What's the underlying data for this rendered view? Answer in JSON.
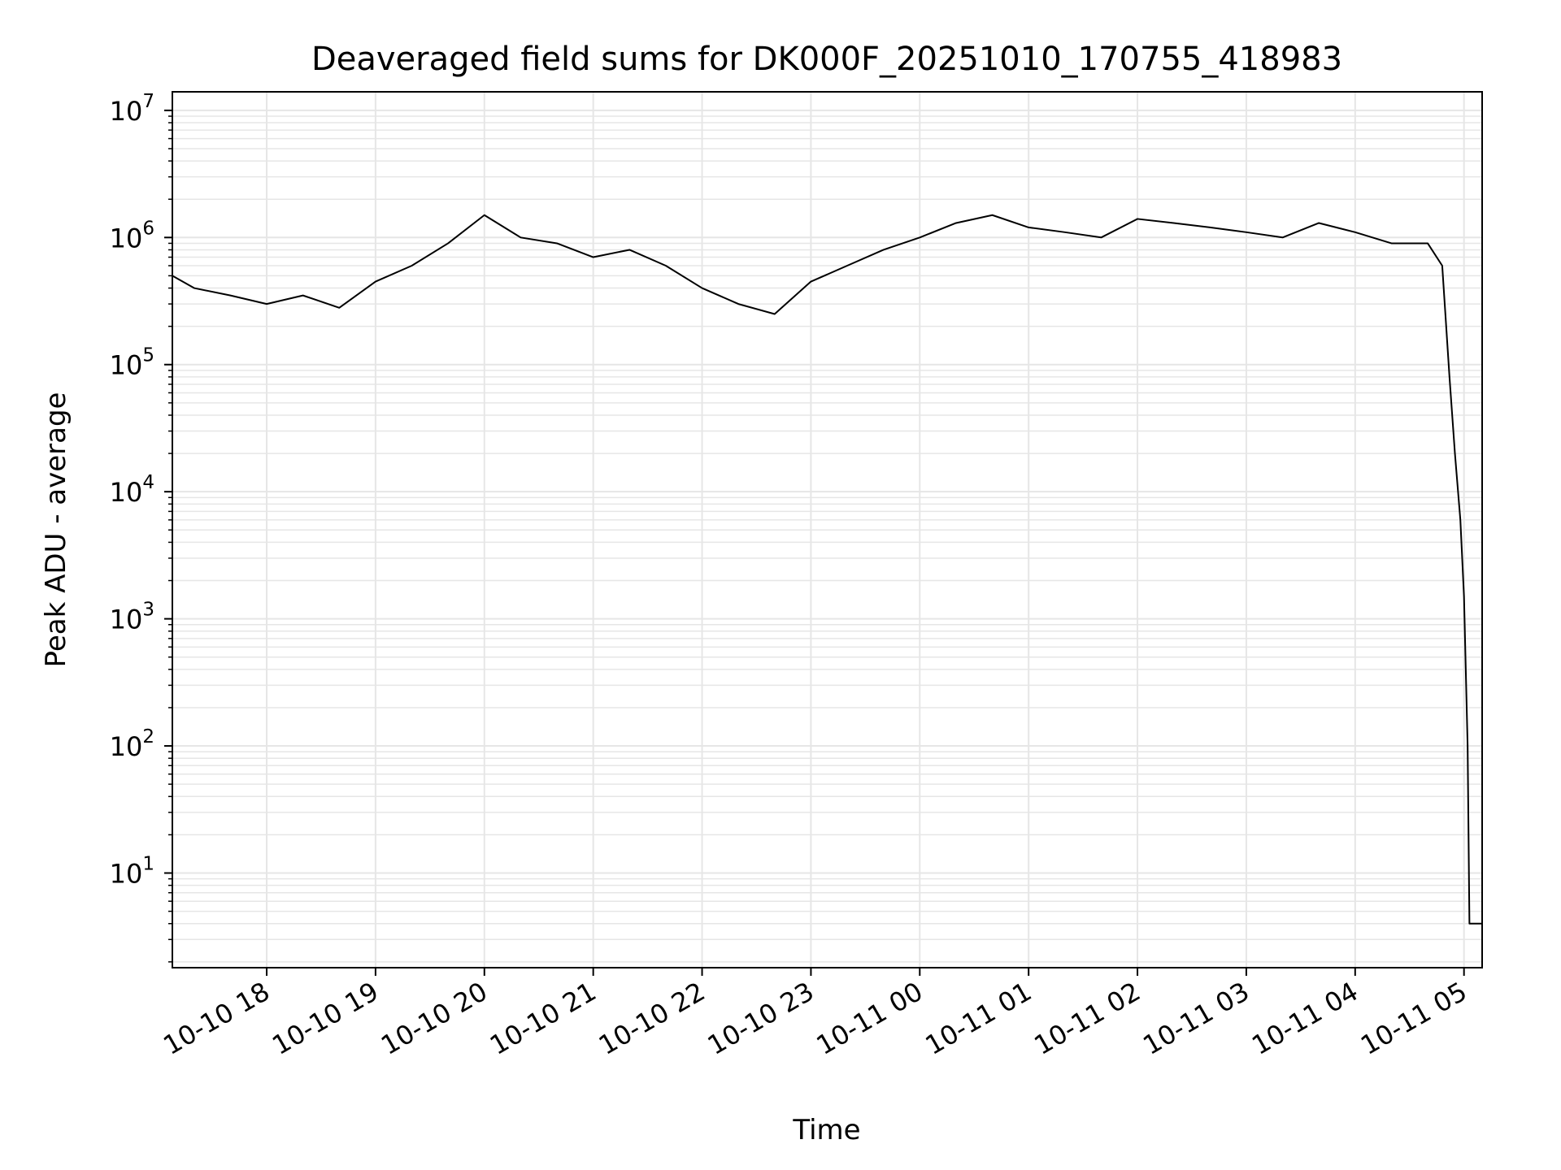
{
  "chart_data": {
    "type": "line",
    "title": "Deaveraged field sums for DK000F_20251010_170755_418983",
    "xlabel": "Time",
    "ylabel": "Peak ADU - average",
    "yscale": "log",
    "ylim": [
      1.8,
      14000000
    ],
    "xlim": [
      "2025-10-10 17:08",
      "2025-10-11 05:10"
    ],
    "grid": true,
    "line_color": "#000000",
    "grid_color": "#e6e6e6",
    "x_ticks": [
      "2025-10-10 18:00",
      "2025-10-10 19:00",
      "2025-10-10 20:00",
      "2025-10-10 21:00",
      "2025-10-10 22:00",
      "2025-10-10 23:00",
      "2025-10-11 00:00",
      "2025-10-11 01:00",
      "2025-10-11 02:00",
      "2025-10-11 03:00",
      "2025-10-11 04:00",
      "2025-10-11 05:00"
    ],
    "x_tick_labels": [
      "10-10 18",
      "10-10 19",
      "10-10 20",
      "10-10 21",
      "10-10 22",
      "10-10 23",
      "10-11 00",
      "10-11 01",
      "10-11 02",
      "10-11 03",
      "10-11 04",
      "10-11 05"
    ],
    "y_ticks": [
      10,
      100,
      1000,
      10000,
      100000,
      1000000,
      10000000
    ],
    "y_tick_labels": [
      {
        "base": "10",
        "exp": "1"
      },
      {
        "base": "10",
        "exp": "2"
      },
      {
        "base": "10",
        "exp": "3"
      },
      {
        "base": "10",
        "exp": "4"
      },
      {
        "base": "10",
        "exp": "5"
      },
      {
        "base": "10",
        "exp": "6"
      },
      {
        "base": "10",
        "exp": "7"
      }
    ],
    "series": [
      {
        "x": [
          "2025-10-10 17:08",
          "2025-10-10 17:20",
          "2025-10-10 17:40",
          "2025-10-10 18:00",
          "2025-10-10 18:20",
          "2025-10-10 18:40",
          "2025-10-10 19:00",
          "2025-10-10 19:20",
          "2025-10-10 19:40",
          "2025-10-10 20:00",
          "2025-10-10 20:20",
          "2025-10-10 20:40",
          "2025-10-10 21:00",
          "2025-10-10 21:20",
          "2025-10-10 21:40",
          "2025-10-10 22:00",
          "2025-10-10 22:20",
          "2025-10-10 22:40",
          "2025-10-10 23:00",
          "2025-10-10 23:20",
          "2025-10-10 23:40",
          "2025-10-11 00:00",
          "2025-10-11 00:20",
          "2025-10-11 00:40",
          "2025-10-11 01:00",
          "2025-10-11 01:20",
          "2025-10-11 01:40",
          "2025-10-11 02:00",
          "2025-10-11 02:20",
          "2025-10-11 02:40",
          "2025-10-11 03:00",
          "2025-10-11 03:20",
          "2025-10-11 03:40",
          "2025-10-11 04:00",
          "2025-10-11 04:20",
          "2025-10-11 04:40",
          "2025-10-11 04:48",
          "2025-10-11 04:52",
          "2025-10-11 04:55",
          "2025-10-11 04:58",
          "2025-10-11 05:00",
          "2025-10-11 05:02",
          "2025-10-11 05:03",
          "2025-10-11 05:05",
          "2025-10-11 05:10"
        ],
        "y": [
          500000,
          400000,
          350000,
          300000,
          350000,
          280000,
          450000,
          600000,
          900000,
          1500000,
          1000000,
          900000,
          700000,
          800000,
          600000,
          400000,
          300000,
          250000,
          450000,
          600000,
          800000,
          1000000,
          1300000,
          1500000,
          1200000,
          1100000,
          1000000,
          1400000,
          1300000,
          1200000,
          1100000,
          1000000,
          1300000,
          1100000,
          900000,
          900000,
          600000,
          80000,
          20000,
          6000,
          1500,
          100,
          4,
          4,
          4
        ]
      }
    ]
  }
}
